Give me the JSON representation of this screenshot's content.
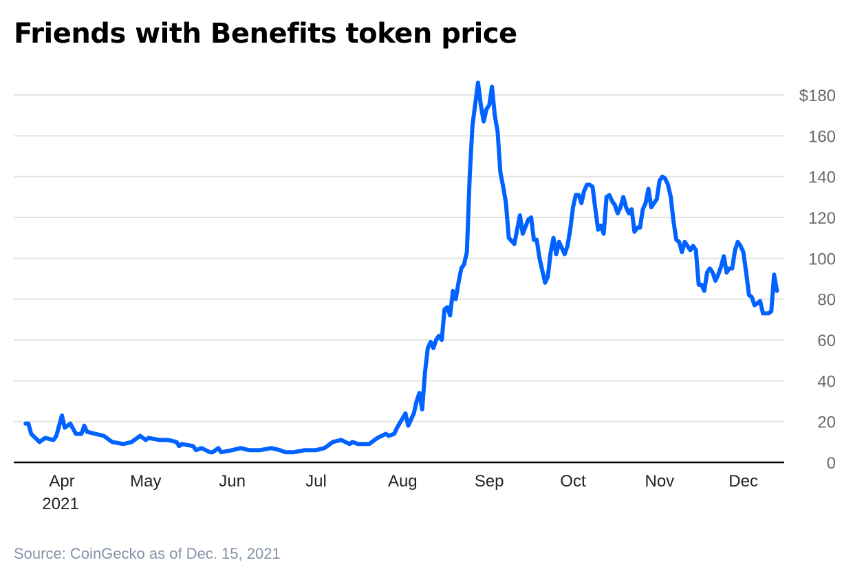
{
  "chart_data": {
    "type": "line",
    "title": "Friends with Benefits token price",
    "source": "Source: CoinGecko as of Dec. 15, 2021",
    "xlabel": "",
    "ylabel": "",
    "ylim": [
      0,
      180
    ],
    "yticks": [
      0,
      20,
      40,
      60,
      80,
      100,
      120,
      140,
      160,
      180
    ],
    "ytick_labels": [
      "0",
      "20",
      "40",
      "60",
      "80",
      "100",
      "120",
      "140",
      "160",
      "$180"
    ],
    "xticks": [
      {
        "date": "2021-04-01",
        "label": "Apr",
        "sublabel": "2021"
      },
      {
        "date": "2021-05-01",
        "label": "May"
      },
      {
        "date": "2021-06-01",
        "label": "Jun"
      },
      {
        "date": "2021-07-01",
        "label": "Jul"
      },
      {
        "date": "2021-08-01",
        "label": "Aug"
      },
      {
        "date": "2021-09-01",
        "label": "Sep"
      },
      {
        "date": "2021-10-01",
        "label": "Oct"
      },
      {
        "date": "2021-11-01",
        "label": "Nov"
      },
      {
        "date": "2021-12-01",
        "label": "Dec"
      }
    ],
    "grid": true,
    "line_color": "#0062ff",
    "points": [
      [
        "2021-03-19",
        19
      ],
      [
        "2021-03-20",
        19
      ],
      [
        "2021-03-21",
        14
      ],
      [
        "2021-03-24",
        10
      ],
      [
        "2021-03-26",
        12
      ],
      [
        "2021-03-29",
        11
      ],
      [
        "2021-03-30",
        13
      ],
      [
        "2021-04-01",
        23
      ],
      [
        "2021-04-02",
        17
      ],
      [
        "2021-04-04",
        19
      ],
      [
        "2021-04-06",
        14
      ],
      [
        "2021-04-08",
        14
      ],
      [
        "2021-04-09",
        18
      ],
      [
        "2021-04-10",
        15
      ],
      [
        "2021-04-13",
        14
      ],
      [
        "2021-04-16",
        13
      ],
      [
        "2021-04-18",
        11
      ],
      [
        "2021-04-19",
        10
      ],
      [
        "2021-04-23",
        9
      ],
      [
        "2021-04-26",
        10
      ],
      [
        "2021-04-29",
        13
      ],
      [
        "2021-05-01",
        11
      ],
      [
        "2021-05-02",
        12
      ],
      [
        "2021-05-06",
        11
      ],
      [
        "2021-05-09",
        11
      ],
      [
        "2021-05-12",
        10
      ],
      [
        "2021-05-13",
        8
      ],
      [
        "2021-05-14",
        9
      ],
      [
        "2021-05-18",
        8
      ],
      [
        "2021-05-19",
        6
      ],
      [
        "2021-05-21",
        7
      ],
      [
        "2021-05-24",
        5
      ],
      [
        "2021-05-25",
        5
      ],
      [
        "2021-05-27",
        7
      ],
      [
        "2021-05-28",
        5
      ],
      [
        "2021-06-01",
        6
      ],
      [
        "2021-06-04",
        7
      ],
      [
        "2021-06-07",
        6
      ],
      [
        "2021-06-11",
        6
      ],
      [
        "2021-06-15",
        7
      ],
      [
        "2021-06-18",
        6
      ],
      [
        "2021-06-20",
        5
      ],
      [
        "2021-06-23",
        5
      ],
      [
        "2021-06-27",
        6
      ],
      [
        "2021-07-01",
        6
      ],
      [
        "2021-07-04",
        7
      ],
      [
        "2021-07-05",
        8
      ],
      [
        "2021-07-07",
        10
      ],
      [
        "2021-07-10",
        11
      ],
      [
        "2021-07-13",
        9
      ],
      [
        "2021-07-14",
        10
      ],
      [
        "2021-07-16",
        9
      ],
      [
        "2021-07-20",
        9
      ],
      [
        "2021-07-21",
        10
      ],
      [
        "2021-07-23",
        12
      ],
      [
        "2021-07-26",
        14
      ],
      [
        "2021-07-27",
        13
      ],
      [
        "2021-07-29",
        14
      ],
      [
        "2021-07-30",
        17
      ],
      [
        "2021-08-02",
        24
      ],
      [
        "2021-08-03",
        18
      ],
      [
        "2021-08-05",
        24
      ],
      [
        "2021-08-06",
        30
      ],
      [
        "2021-08-07",
        34
      ],
      [
        "2021-08-08",
        26
      ],
      [
        "2021-08-09",
        44
      ],
      [
        "2021-08-10",
        56
      ],
      [
        "2021-08-11",
        59
      ],
      [
        "2021-08-12",
        56
      ],
      [
        "2021-08-13",
        60
      ],
      [
        "2021-08-14",
        62
      ],
      [
        "2021-08-15",
        60
      ],
      [
        "2021-08-16",
        75
      ],
      [
        "2021-08-17",
        76
      ],
      [
        "2021-08-18",
        72
      ],
      [
        "2021-08-19",
        84
      ],
      [
        "2021-08-20",
        80
      ],
      [
        "2021-08-21",
        88
      ],
      [
        "2021-08-22",
        95
      ],
      [
        "2021-08-23",
        97
      ],
      [
        "2021-08-24",
        103
      ],
      [
        "2021-08-25",
        140
      ],
      [
        "2021-08-26",
        165
      ],
      [
        "2021-08-28",
        186
      ],
      [
        "2021-08-29",
        175
      ],
      [
        "2021-08-30",
        167
      ],
      [
        "2021-08-31",
        173
      ],
      [
        "2021-09-01",
        175
      ],
      [
        "2021-09-02",
        184
      ],
      [
        "2021-09-03",
        170
      ],
      [
        "2021-09-04",
        162
      ],
      [
        "2021-09-05",
        142
      ],
      [
        "2021-09-06",
        135
      ],
      [
        "2021-09-07",
        127
      ],
      [
        "2021-09-08",
        110
      ],
      [
        "2021-09-10",
        107
      ],
      [
        "2021-09-12",
        121
      ],
      [
        "2021-09-13",
        112
      ],
      [
        "2021-09-15",
        119
      ],
      [
        "2021-09-16",
        120
      ],
      [
        "2021-09-17",
        109
      ],
      [
        "2021-09-18",
        109
      ],
      [
        "2021-09-19",
        100
      ],
      [
        "2021-09-21",
        88
      ],
      [
        "2021-09-22",
        91
      ],
      [
        "2021-09-23",
        103
      ],
      [
        "2021-09-24",
        110
      ],
      [
        "2021-09-25",
        102
      ],
      [
        "2021-09-26",
        108
      ],
      [
        "2021-09-28",
        102
      ],
      [
        "2021-09-29",
        106
      ],
      [
        "2021-09-30",
        114
      ],
      [
        "2021-10-01",
        125
      ],
      [
        "2021-10-02",
        131
      ],
      [
        "2021-10-03",
        131
      ],
      [
        "2021-10-04",
        127
      ],
      [
        "2021-10-05",
        133
      ],
      [
        "2021-10-06",
        136
      ],
      [
        "2021-10-07",
        136
      ],
      [
        "2021-10-08",
        135
      ],
      [
        "2021-10-09",
        124
      ],
      [
        "2021-10-10",
        114
      ],
      [
        "2021-10-11",
        116
      ],
      [
        "2021-10-12",
        112
      ],
      [
        "2021-10-13",
        130
      ],
      [
        "2021-10-14",
        131
      ],
      [
        "2021-10-15",
        128
      ],
      [
        "2021-10-16",
        126
      ],
      [
        "2021-10-17",
        122
      ],
      [
        "2021-10-18",
        125
      ],
      [
        "2021-10-19",
        130
      ],
      [
        "2021-10-20",
        125
      ],
      [
        "2021-10-21",
        122
      ],
      [
        "2021-10-22",
        124
      ],
      [
        "2021-10-23",
        113
      ],
      [
        "2021-10-24",
        115
      ],
      [
        "2021-10-25",
        115
      ],
      [
        "2021-10-26",
        124
      ],
      [
        "2021-10-27",
        127
      ],
      [
        "2021-10-28",
        134
      ],
      [
        "2021-10-29",
        125
      ],
      [
        "2021-10-31",
        129
      ],
      [
        "2021-11-01",
        138
      ],
      [
        "2021-11-02",
        140
      ],
      [
        "2021-11-03",
        139
      ],
      [
        "2021-11-04",
        136
      ],
      [
        "2021-11-05",
        130
      ],
      [
        "2021-11-06",
        118
      ],
      [
        "2021-11-07",
        109
      ],
      [
        "2021-11-08",
        108
      ],
      [
        "2021-11-09",
        103
      ],
      [
        "2021-11-10",
        108
      ],
      [
        "2021-11-12",
        104
      ],
      [
        "2021-11-13",
        106
      ],
      [
        "2021-11-14",
        104
      ],
      [
        "2021-11-15",
        87
      ],
      [
        "2021-11-16",
        87
      ],
      [
        "2021-11-17",
        84
      ],
      [
        "2021-11-18",
        93
      ],
      [
        "2021-11-19",
        95
      ],
      [
        "2021-11-20",
        93
      ],
      [
        "2021-11-21",
        89
      ],
      [
        "2021-11-22",
        92
      ],
      [
        "2021-11-23",
        96
      ],
      [
        "2021-11-24",
        101
      ],
      [
        "2021-11-25",
        93
      ],
      [
        "2021-11-26",
        95
      ],
      [
        "2021-11-27",
        95
      ],
      [
        "2021-11-28",
        104
      ],
      [
        "2021-11-29",
        108
      ],
      [
        "2021-11-30",
        106
      ],
      [
        "2021-12-01",
        103
      ],
      [
        "2021-12-02",
        93
      ],
      [
        "2021-12-03",
        82
      ],
      [
        "2021-12-04",
        81
      ],
      [
        "2021-12-05",
        77
      ],
      [
        "2021-12-07",
        79
      ],
      [
        "2021-12-08",
        73
      ],
      [
        "2021-12-10",
        73
      ],
      [
        "2021-12-11",
        74
      ],
      [
        "2021-12-12",
        92
      ],
      [
        "2021-12-13",
        84
      ]
    ]
  }
}
